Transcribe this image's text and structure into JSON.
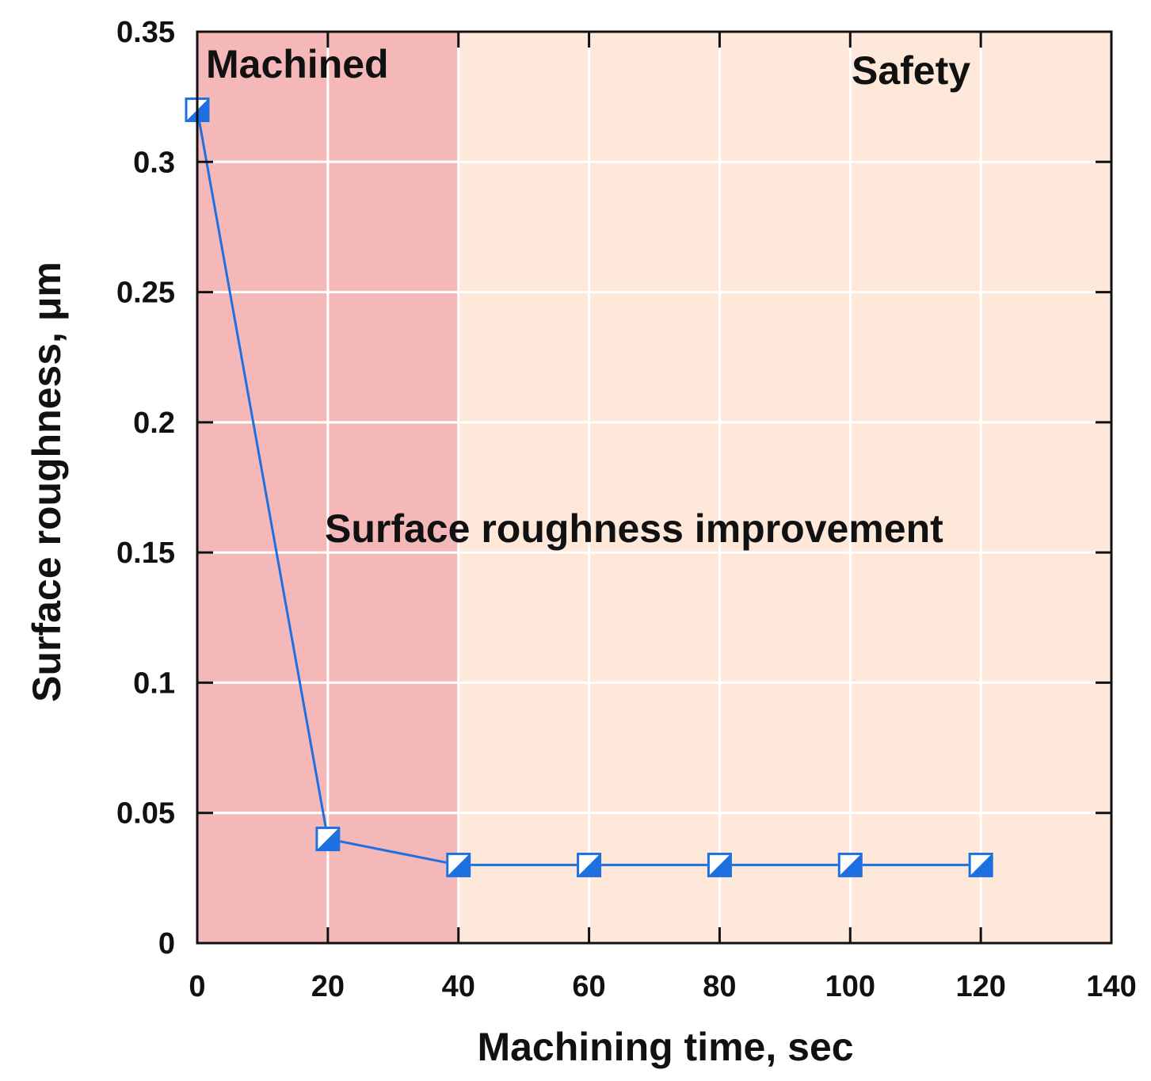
{
  "chart_data": {
    "type": "line",
    "title": "",
    "xlabel": "Machining time, sec",
    "ylabel": "Surface roughness, μm",
    "xlim": [
      0,
      140
    ],
    "ylim": [
      0,
      0.35
    ],
    "x_ticks": [
      0,
      20,
      40,
      60,
      80,
      100,
      120,
      140
    ],
    "x_tick_labels": [
      "0",
      "20",
      "40",
      "60",
      "80",
      "100",
      "120",
      "140"
    ],
    "y_ticks": [
      0,
      0.05,
      0.1,
      0.15,
      0.2,
      0.25,
      0.3,
      0.35
    ],
    "y_tick_labels": [
      "0",
      "0.05",
      "0.1",
      "0.15",
      "0.2",
      "0.25",
      "0.3",
      "0.35"
    ],
    "grid": true,
    "series": [
      {
        "name": "Surface roughness",
        "color": "#1e6fe0",
        "marker": "half-filled square",
        "x": [
          0,
          20,
          40,
          60,
          80,
          100,
          120
        ],
        "y": [
          0.32,
          0.04,
          0.03,
          0.03,
          0.03,
          0.03,
          0.03
        ]
      }
    ],
    "regions": [
      {
        "label": "Machined",
        "x_from": 0,
        "x_to": 40,
        "color": "#f4b8b8"
      },
      {
        "label": "Safety",
        "x_from": 40,
        "x_to": 140,
        "color": "#fde8d9"
      }
    ],
    "annotations": [
      {
        "text": "Machined"
      },
      {
        "text": "Safety"
      },
      {
        "text": "Surface roughness improvement"
      }
    ]
  }
}
